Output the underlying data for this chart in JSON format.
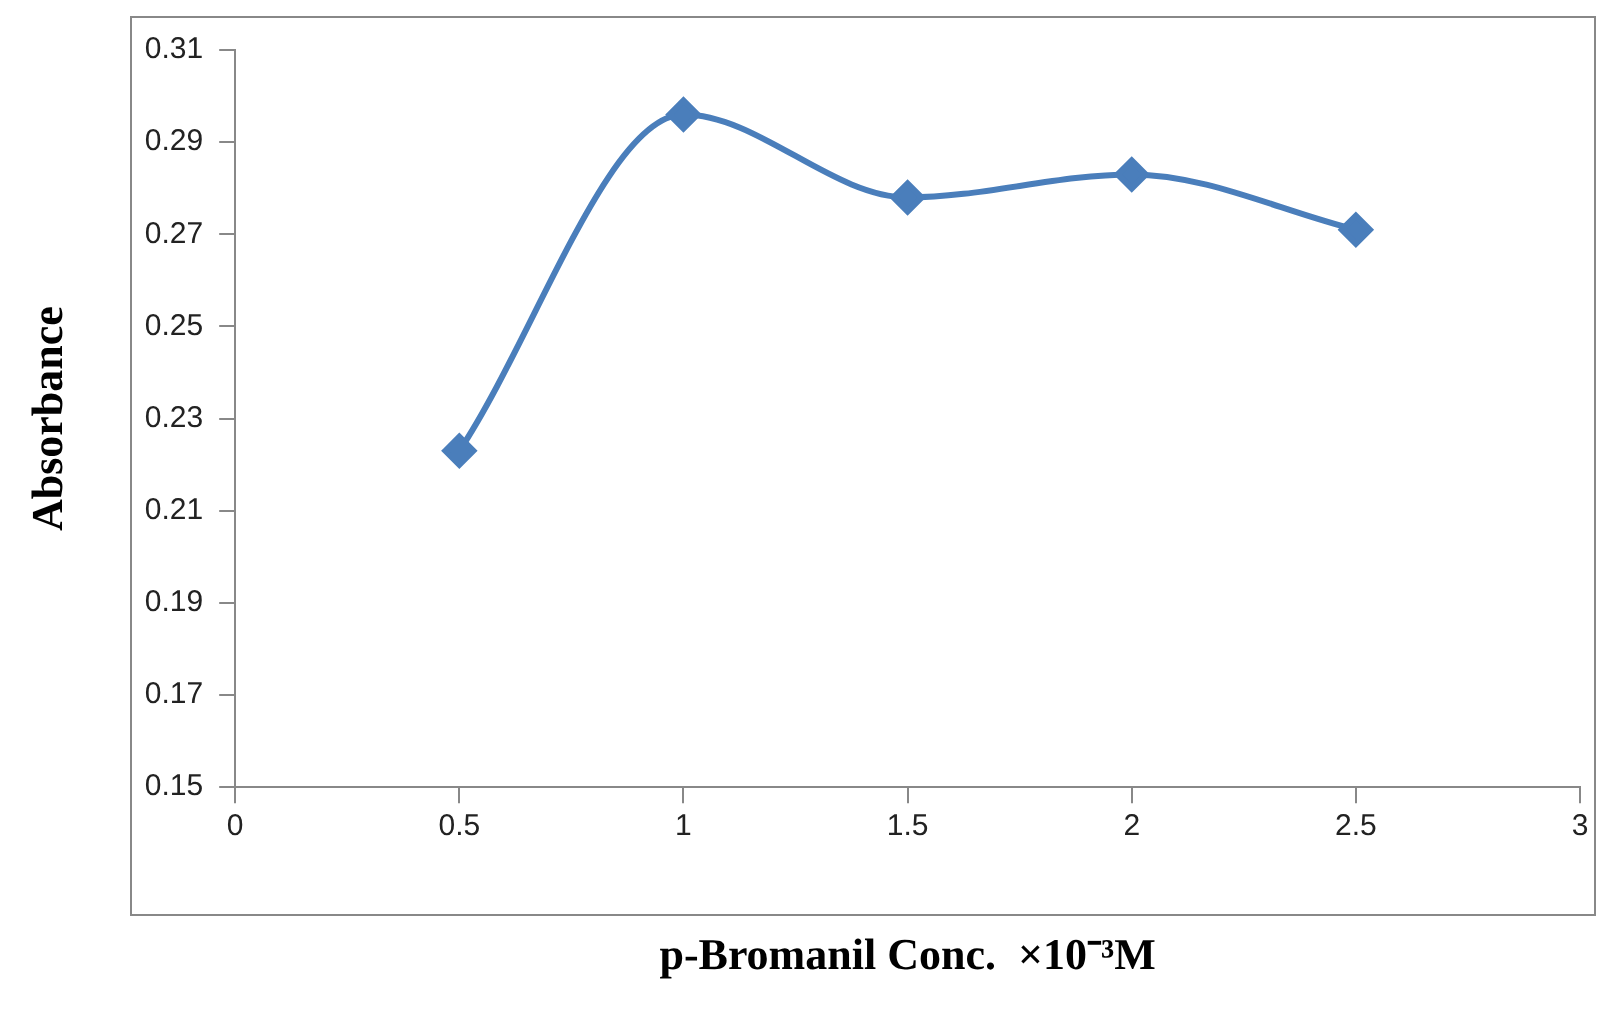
{
  "chart_data": {
    "type": "line",
    "xlabel": "p-Bromanil Conc.  ×10⁻³M",
    "ylabel": "Absorbance",
    "x": [
      0.5,
      1,
      1.5,
      2,
      2.5
    ],
    "series": [
      {
        "color": "#4a7ebb",
        "values": [
          0.223,
          0.296,
          0.278,
          0.283,
          0.271
        ]
      }
    ],
    "xlim": [
      0,
      3
    ],
    "xticks": [
      0,
      0.5,
      1,
      1.5,
      2,
      2.5,
      3
    ],
    "ylim": [
      0.15,
      0.31
    ],
    "yticks": [
      0.15,
      0.17,
      0.19,
      0.21,
      0.23,
      0.25,
      0.27,
      0.29,
      0.31
    ],
    "grid": false,
    "legend": false,
    "marker": "diamond",
    "line_style": "solid"
  }
}
